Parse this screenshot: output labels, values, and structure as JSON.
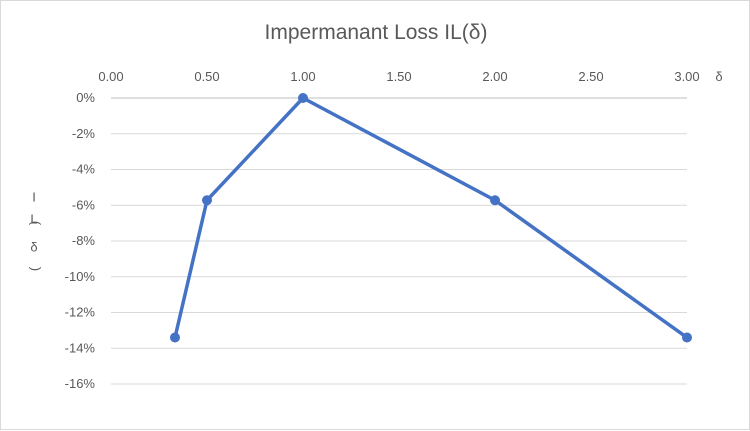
{
  "chart_data": {
    "type": "scatter",
    "title": "Impermanant Loss IL(δ)",
    "xlabel": "δ",
    "ylabel": [
      "I",
      "L",
      "(",
      "δ",
      ")"
    ],
    "x_axis_position": "top",
    "xlim": [
      0,
      3
    ],
    "ylim": [
      -0.16,
      0
    ],
    "x_ticks": [
      "0.00",
      "0.50",
      "1.00",
      "1.50",
      "2.00",
      "2.50",
      "3.00"
    ],
    "y_ticks": [
      "0%",
      "-2%",
      "-4%",
      "-6%",
      "-8%",
      "-10%",
      "-12%",
      "-14%",
      "-16%"
    ],
    "grid": true,
    "series": [
      {
        "x": [
          0.3333,
          0.5,
          1.0,
          2.0,
          3.0
        ],
        "y": [
          -0.134,
          -0.0572,
          0.0,
          -0.0572,
          -0.134
        ],
        "color": "#4472C4",
        "style": "straight lines with markers"
      }
    ]
  }
}
